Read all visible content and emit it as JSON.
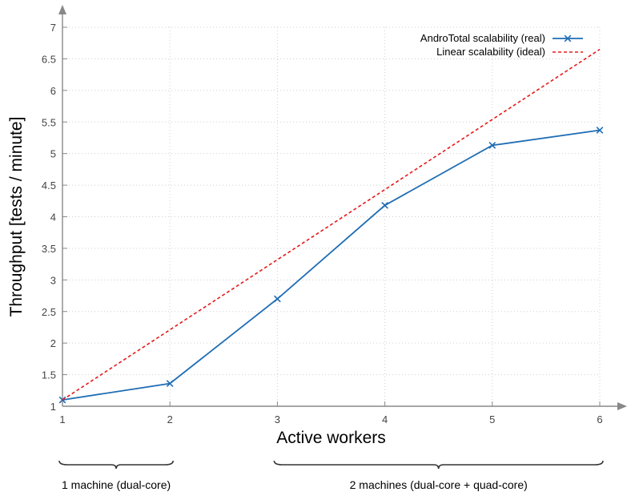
{
  "chart_data": {
    "type": "line",
    "xlabel": "Active workers",
    "ylabel": "Throughput [tests / minute]",
    "x": [
      1,
      2,
      3,
      4,
      5,
      6
    ],
    "xlim": [
      1,
      6
    ],
    "ylim": [
      1,
      7
    ],
    "xticks": [
      "1",
      "2",
      "3",
      "4",
      "5",
      "6"
    ],
    "yticks": [
      "1",
      "1.5",
      "2",
      "2.5",
      "3",
      "3.5",
      "4",
      "4.5",
      "5",
      "5.5",
      "6",
      "6.5",
      "7"
    ],
    "grid": true,
    "legend_position": "top-right",
    "series": [
      {
        "name": "AndroTotal scalability (real)",
        "values": [
          1.1,
          1.36,
          2.7,
          4.18,
          5.13,
          5.37
        ],
        "color": "#1f6db4",
        "style": "solid",
        "marker": "x"
      },
      {
        "name": "Linear scalability (ideal)",
        "values": [
          1.1,
          2.21,
          3.32,
          4.43,
          5.54,
          6.65
        ],
        "color": "#e41a1c",
        "style": "dashed",
        "marker": "none"
      }
    ],
    "annotations": [
      {
        "text": "1 machine (dual-core)",
        "x_range": [
          1,
          2
        ]
      },
      {
        "text": "2 machines (dual-core + quad-core)",
        "x_range": [
          3,
          6
        ]
      }
    ]
  }
}
